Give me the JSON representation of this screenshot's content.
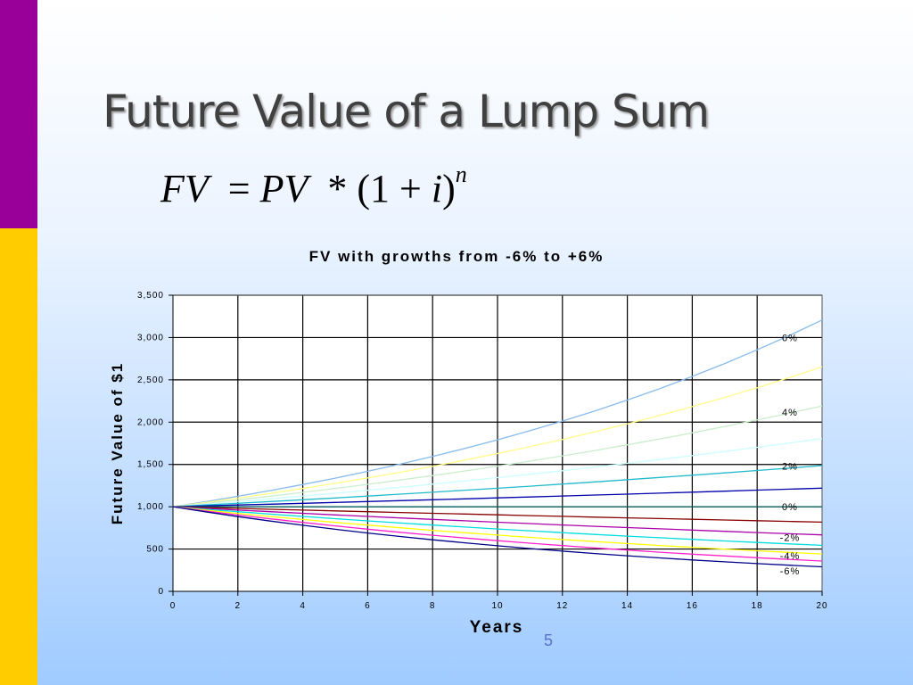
{
  "slide": {
    "title": "Future Value of a Lump Sum",
    "formula": {
      "lhs": "FV",
      "eq": "=",
      "pv": "PV",
      "op": "* (1 + ",
      "i": "i",
      "close": ")",
      "exp": "n"
    },
    "page_number": "5",
    "colors": {
      "left_bar_top": "#990099",
      "left_bar_bottom": "#ffcc00"
    }
  },
  "chart_data": {
    "type": "line",
    "title": "FV with growths from -6% to +6%",
    "xlabel": "Years",
    "ylabel": "Future Value of $1",
    "xlim": [
      0,
      20
    ],
    "ylim": [
      0,
      3500
    ],
    "x_ticks": [
      0,
      2,
      4,
      6,
      8,
      10,
      12,
      14,
      16,
      18,
      20
    ],
    "y_ticks": [
      0,
      500,
      1000,
      1500,
      2000,
      2500,
      3000,
      3500
    ],
    "y_tick_labels": [
      "0",
      "500",
      "1,000",
      "1,500",
      "2,000",
      "2,500",
      "3,000",
      "3,500"
    ],
    "grid": true,
    "principal": 1000,
    "series": [
      {
        "rate": 0.06,
        "color": "#88bbee"
      },
      {
        "rate": 0.05,
        "color": "#ffff88"
      },
      {
        "rate": 0.04,
        "color": "#cceecc"
      },
      {
        "rate": 0.03,
        "color": "#ccffff"
      },
      {
        "rate": 0.02,
        "color": "#22bbcc"
      },
      {
        "rate": 0.01,
        "color": "#0000aa"
      },
      {
        "rate": 0.0,
        "color": "#006666"
      },
      {
        "rate": -0.01,
        "color": "#880000"
      },
      {
        "rate": -0.02,
        "color": "#aa00aa"
      },
      {
        "rate": -0.03,
        "color": "#00dddd"
      },
      {
        "rate": -0.04,
        "color": "#ffff00"
      },
      {
        "rate": -0.05,
        "color": "#ff22cc"
      },
      {
        "rate": -0.06,
        "color": "#000088"
      }
    ],
    "annotations": [
      {
        "text": "6%",
        "y": 3000
      },
      {
        "text": "4%",
        "y": 2120
      },
      {
        "text": "2%",
        "y": 1480
      },
      {
        "text": "0%",
        "y": 1000
      },
      {
        "text": "-2%",
        "y": 640
      },
      {
        "text": "-4%",
        "y": 420
      },
      {
        "text": "-6%",
        "y": 240
      }
    ]
  }
}
